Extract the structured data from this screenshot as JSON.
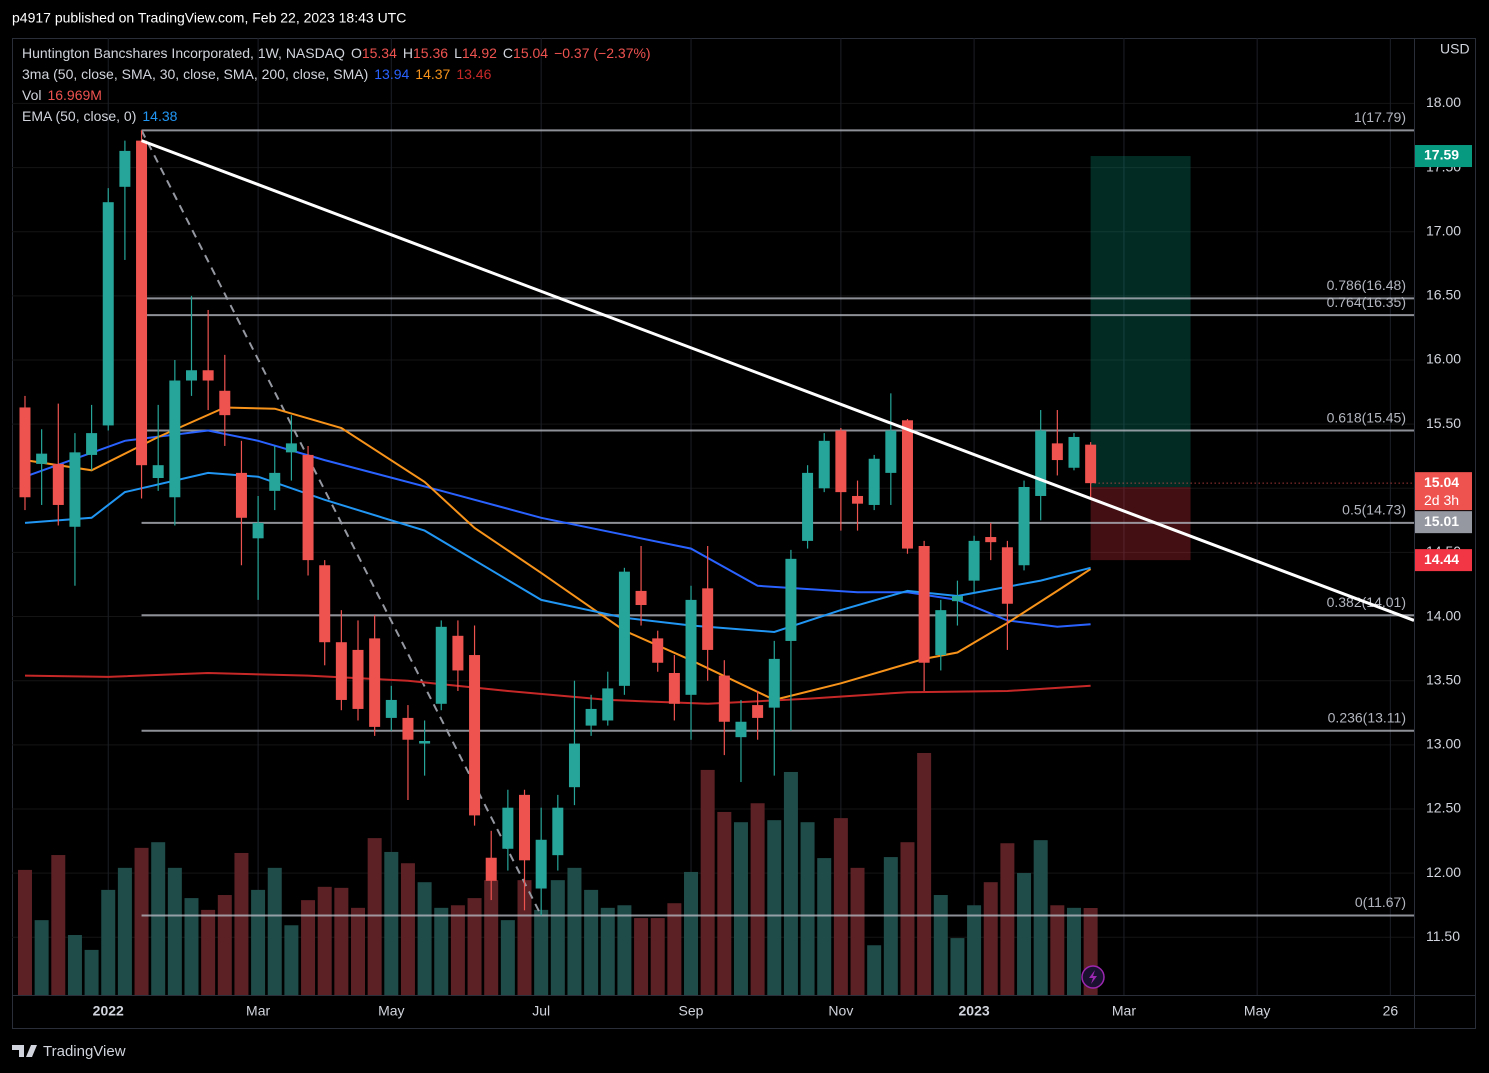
{
  "published": "p4917 published on TradingView.com, Feb 22, 2023 18:43 UTC",
  "brand": "TradingView",
  "chart_data": {
    "type": "candlestick",
    "currency": "USD",
    "legend": [
      [
        [
          {
            "text": "Huntington Bancshares Incorporated, 1W, NASDAQ",
            "color": "#d1d4dc"
          }
        ],
        [
          {
            "text": "O",
            "color": "#d1d4dc"
          },
          {
            "text": "15.34",
            "color": "#ef5350"
          }
        ],
        [
          {
            "text": "H",
            "color": "#d1d4dc"
          },
          {
            "text": "15.36",
            "color": "#ef5350"
          }
        ],
        [
          {
            "text": "L",
            "color": "#d1d4dc"
          },
          {
            "text": "14.92",
            "color": "#ef5350"
          }
        ],
        [
          {
            "text": "C",
            "color": "#d1d4dc"
          },
          {
            "text": "15.04",
            "color": "#ef5350"
          }
        ],
        [
          {
            "text": "−0.37 (−2.37%)",
            "color": "#ef5350"
          }
        ]
      ],
      [
        [
          {
            "text": "3ma (50, close, SMA, 30, close, SMA, 200, close, SMA)",
            "color": "#d1d4dc"
          }
        ],
        [
          {
            "text": "13.94",
            "color": "#2962ff"
          }
        ],
        [
          {
            "text": "14.37",
            "color": "#f7931a"
          }
        ],
        [
          {
            "text": "13.46",
            "color": "#c62828"
          }
        ]
      ],
      [
        [
          {
            "text": "Vol",
            "color": "#d1d4dc"
          }
        ],
        [
          {
            "text": "16.969M",
            "color": "#ef5350"
          }
        ]
      ],
      [
        [
          {
            "text": "EMA (50, close, 0)",
            "color": "#d1d4dc"
          }
        ],
        [
          {
            "text": "14.38",
            "color": "#2196f3"
          }
        ]
      ]
    ],
    "up_color": "#26a69a",
    "down_color": "#ef5350",
    "up_volume_color": "#1f4c49",
    "down_volume_color": "#5c2125",
    "open": [
      15.63,
      15.19,
      15.19,
      14.7,
      15.26,
      15.49,
      17.35,
      17.71,
      15.08,
      14.93,
      15.84,
      15.92,
      15.76,
      15.12,
      14.61,
      14.98,
      15.28,
      15.26,
      14.4,
      13.8,
      13.74,
      13.83,
      13.21,
      13.21,
      13.01,
      13.32,
      13.85,
      13.7,
      12.12,
      12.19,
      12.61,
      11.88,
      12.14,
      12.67,
      13.15,
      13.19,
      13.46,
      14.2,
      13.83,
      13.56,
      13.39,
      14.22,
      13.54,
      13.06,
      13.31,
      13.29,
      13.81,
      14.59,
      15.0,
      15.45,
      14.94,
      14.87,
      15.12,
      15.53,
      14.55,
      13.7,
      14.12,
      14.28,
      14.62,
      14.54,
      14.4,
      14.94,
      15.35,
      15.16,
      15.34
    ],
    "high": [
      15.72,
      15.46,
      15.66,
      15.43,
      15.65,
      17.34,
      17.71,
      17.79,
      15.65,
      16.0,
      16.5,
      16.39,
      16.04,
      15.37,
      14.94,
      15.33,
      15.57,
      15.33,
      14.44,
      14.05,
      13.97,
      14.01,
      13.46,
      13.31,
      13.19,
      13.97,
      13.97,
      13.93,
      12.33,
      12.65,
      12.65,
      12.51,
      12.61,
      13.5,
      13.39,
      13.57,
      14.38,
      14.55,
      13.89,
      13.7,
      14.24,
      14.55,
      13.66,
      13.35,
      13.42,
      13.81,
      14.52,
      15.18,
      15.43,
      15.47,
      15.06,
      15.26,
      15.74,
      15.54,
      14.59,
      14.13,
      14.28,
      14.63,
      14.73,
      14.59,
      15.06,
      15.61,
      15.61,
      15.43,
      15.36
    ],
    "low": [
      14.83,
      14.87,
      14.71,
      14.24,
      15.14,
      15.45,
      16.78,
      14.92,
      14.98,
      14.71,
      15.72,
      15.61,
      15.33,
      14.4,
      14.13,
      14.83,
      15.06,
      14.32,
      13.62,
      13.27,
      13.19,
      13.07,
      13.11,
      12.57,
      12.76,
      13.27,
      13.42,
      12.37,
      11.79,
      12.02,
      11.71,
      11.67,
      12.02,
      12.53,
      13.07,
      13.15,
      13.39,
      13.93,
      13.57,
      13.19,
      13.04,
      13.5,
      12.92,
      12.71,
      13.04,
      12.76,
      13.11,
      14.53,
      14.97,
      14.67,
      14.67,
      14.83,
      14.87,
      14.49,
      13.42,
      13.58,
      13.93,
      14.19,
      14.44,
      13.74,
      14.36,
      14.75,
      15.1,
      15.14,
      14.92
    ],
    "close": [
      14.93,
      15.27,
      14.87,
      15.28,
      15.43,
      17.23,
      17.63,
      15.18,
      15.18,
      15.84,
      15.92,
      15.84,
      15.57,
      14.77,
      14.73,
      15.12,
      15.35,
      14.44,
      13.8,
      13.35,
      13.28,
      13.14,
      13.35,
      13.04,
      13.03,
      13.92,
      13.58,
      12.45,
      11.94,
      12.51,
      12.1,
      12.26,
      12.51,
      13.01,
      13.28,
      13.44,
      14.35,
      14.09,
      13.64,
      13.32,
      14.13,
      13.74,
      13.18,
      13.18,
      13.21,
      13.67,
      14.45,
      15.12,
      15.37,
      14.97,
      14.88,
      15.23,
      15.45,
      14.53,
      13.64,
      14.05,
      14.16,
      14.59,
      14.58,
      14.1,
      15.01,
      15.45,
      15.22,
      15.4,
      15.04
    ],
    "volume": [
      24.4,
      14.6,
      27.3,
      11.7,
      8.8,
      20.5,
      24.8,
      28.7,
      29.8,
      24.8,
      18.9,
      16.6,
      19.5,
      27.7,
      20.5,
      24.8,
      13.6,
      18.5,
      21.1,
      20.9,
      17.0,
      30.6,
      27.9,
      25.7,
      22.0,
      17.0,
      17.5,
      18.9,
      22.4,
      14.6,
      22.4,
      16.6,
      22.4,
      24.8,
      20.5,
      17.0,
      17.5,
      15.0,
      15.0,
      17.9,
      24.0,
      43.9,
      35.7,
      33.7,
      37.4,
      34.1,
      43.5,
      33.7,
      26.7,
      34.5,
      24.8,
      9.7,
      26.9,
      29.8,
      47.2,
      19.5,
      11.1,
      17.5,
      22.0,
      29.6,
      23.8,
      30.2,
      17.5,
      17.0,
      16.969
    ],
    "series": [
      {
        "color": "#2962ff",
        "x": [
          0,
          6,
          11,
          14,
          18,
          25,
          31,
          40,
          44,
          50,
          53,
          56,
          59,
          62,
          64
        ],
        "values": [
          15.09,
          15.37,
          15.45,
          15.37,
          15.22,
          14.98,
          14.77,
          14.53,
          14.24,
          14.19,
          14.19,
          14.13,
          13.97,
          13.92,
          13.94
        ]
      },
      {
        "color": "#f7931a",
        "x": [
          0,
          4,
          8,
          12,
          15,
          19,
          24,
          27,
          31,
          36,
          40,
          45,
          49,
          54,
          56,
          59,
          62,
          64
        ],
        "values": [
          15.22,
          15.14,
          15.4,
          15.63,
          15.62,
          15.47,
          15.05,
          14.69,
          14.34,
          13.89,
          13.66,
          13.35,
          13.48,
          13.67,
          13.72,
          13.95,
          14.2,
          14.37
        ]
      },
      {
        "color": "#c62828",
        "x": [
          0,
          5,
          11,
          17,
          23,
          29,
          35,
          41,
          47,
          53,
          59,
          64
        ],
        "values": [
          13.54,
          13.53,
          13.56,
          13.54,
          13.5,
          13.42,
          13.35,
          13.32,
          13.36,
          13.41,
          13.42,
          13.46
        ]
      },
      {
        "color": "#2196f3",
        "x": [
          0,
          4,
          6,
          11,
          14,
          18,
          24,
          31,
          36,
          40,
          45,
          49,
          53,
          56,
          61,
          64
        ],
        "values": [
          14.73,
          14.77,
          14.97,
          15.12,
          15.09,
          14.91,
          14.67,
          14.13,
          13.99,
          13.93,
          13.88,
          14.05,
          14.2,
          14.16,
          14.28,
          14.38
        ]
      }
    ],
    "fib_color": "#b2b5be",
    "fib_levels": [
      {
        "value": 17.79,
        "label": "1(17.79)"
      },
      {
        "value": 16.48,
        "label": "0.786(16.48)"
      },
      {
        "value": 16.35,
        "label": "0.764(16.35)"
      },
      {
        "value": 15.45,
        "label": "0.618(15.45)"
      },
      {
        "value": 14.73,
        "label": "0.5(14.73)"
      },
      {
        "value": 14.01,
        "label": "0.382(14.01)"
      },
      {
        "value": 13.11,
        "label": "0.236(13.11)"
      },
      {
        "value": 11.67,
        "label": "0(11.67)"
      }
    ],
    "trendline": {
      "color": "#ffffff",
      "x": [
        7,
        83.42
      ],
      "values": [
        17.71,
        13.97
      ]
    },
    "position": {
      "entry": 15.01,
      "target": 17.59,
      "stop": 14.44,
      "x": [
        64,
        70
      ]
    },
    "countdown": "2d 3h",
    "xlim": [
      -0.78,
      83.42
    ],
    "ylim": [
      11.05,
      18.51
    ],
    "xticks": [
      {
        "value": 5,
        "label": "2022"
      },
      {
        "value": 14,
        "label": "Mar"
      },
      {
        "value": 22,
        "label": "May"
      },
      {
        "value": 31,
        "label": "Jul"
      },
      {
        "value": 40,
        "label": "Sep"
      },
      {
        "value": 49,
        "label": "Nov"
      },
      {
        "value": 57,
        "label": "2023"
      },
      {
        "value": 66,
        "label": "Mar"
      },
      {
        "value": 74,
        "label": "May"
      },
      {
        "value": 82,
        "label": "26"
      }
    ],
    "yticks": [
      {
        "value": 11.5,
        "label": "11.50"
      },
      {
        "value": 12,
        "label": "12.00"
      },
      {
        "value": 12.5,
        "label": "12.50"
      },
      {
        "value": 13,
        "label": "13.00"
      },
      {
        "value": 13.5,
        "label": "13.50"
      },
      {
        "value": 14,
        "label": "14.00"
      },
      {
        "value": 14.5,
        "label": "14.50"
      },
      {
        "value": 15,
        "label": "15.00"
      },
      {
        "value": 15.5,
        "label": "15.50"
      },
      {
        "value": 16,
        "label": "16.00"
      },
      {
        "value": 16.5,
        "label": "16.50"
      },
      {
        "value": 17,
        "label": "17.00"
      },
      {
        "value": 17.5,
        "label": "17.50"
      },
      {
        "value": 18,
        "label": "18.00"
      }
    ],
    "grid": true
  }
}
